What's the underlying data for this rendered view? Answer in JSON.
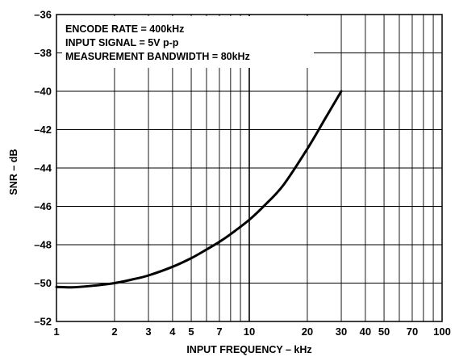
{
  "chart_data": {
    "type": "line",
    "title": "",
    "xlabel": "INPUT FREQUENCY – kHz",
    "ylabel": "SNR – dB",
    "x_scale": "log",
    "xlim": [
      1,
      100
    ],
    "ylim": [
      -52,
      -36
    ],
    "grid": true,
    "x_ticks": [
      1,
      2,
      3,
      4,
      5,
      7,
      10,
      20,
      30,
      40,
      50,
      70,
      100
    ],
    "x_tick_labels": [
      "1",
      "2",
      "3",
      "4",
      "5",
      "7",
      "10",
      "20",
      "30",
      "40",
      "50",
      "70",
      "100"
    ],
    "y_ticks": [
      -52,
      -50,
      -48,
      -46,
      -44,
      -42,
      -40,
      -38,
      -36
    ],
    "y_tick_labels": [
      "–52",
      "–50",
      "–48",
      "–46",
      "–44",
      "–42",
      "–40",
      "–38",
      "–36"
    ],
    "annotations": [
      "ENCODE RATE = 400kHz",
      "INPUT SIGNAL = 5V p-p",
      "MEASUREMENT BANDWIDTH = 80kHz"
    ],
    "series": [
      {
        "x": [
          1,
          1.2,
          1.5,
          2,
          2.5,
          3,
          4,
          5,
          6,
          7,
          8,
          10,
          12,
          15,
          20,
          25,
          30
        ],
        "values": [
          -50.2,
          -50.22,
          -50.15,
          -50.0,
          -49.8,
          -49.6,
          -49.15,
          -48.7,
          -48.25,
          -47.85,
          -47.45,
          -46.7,
          -45.95,
          -44.9,
          -43.0,
          -41.35,
          -40.0
        ]
      }
    ]
  }
}
